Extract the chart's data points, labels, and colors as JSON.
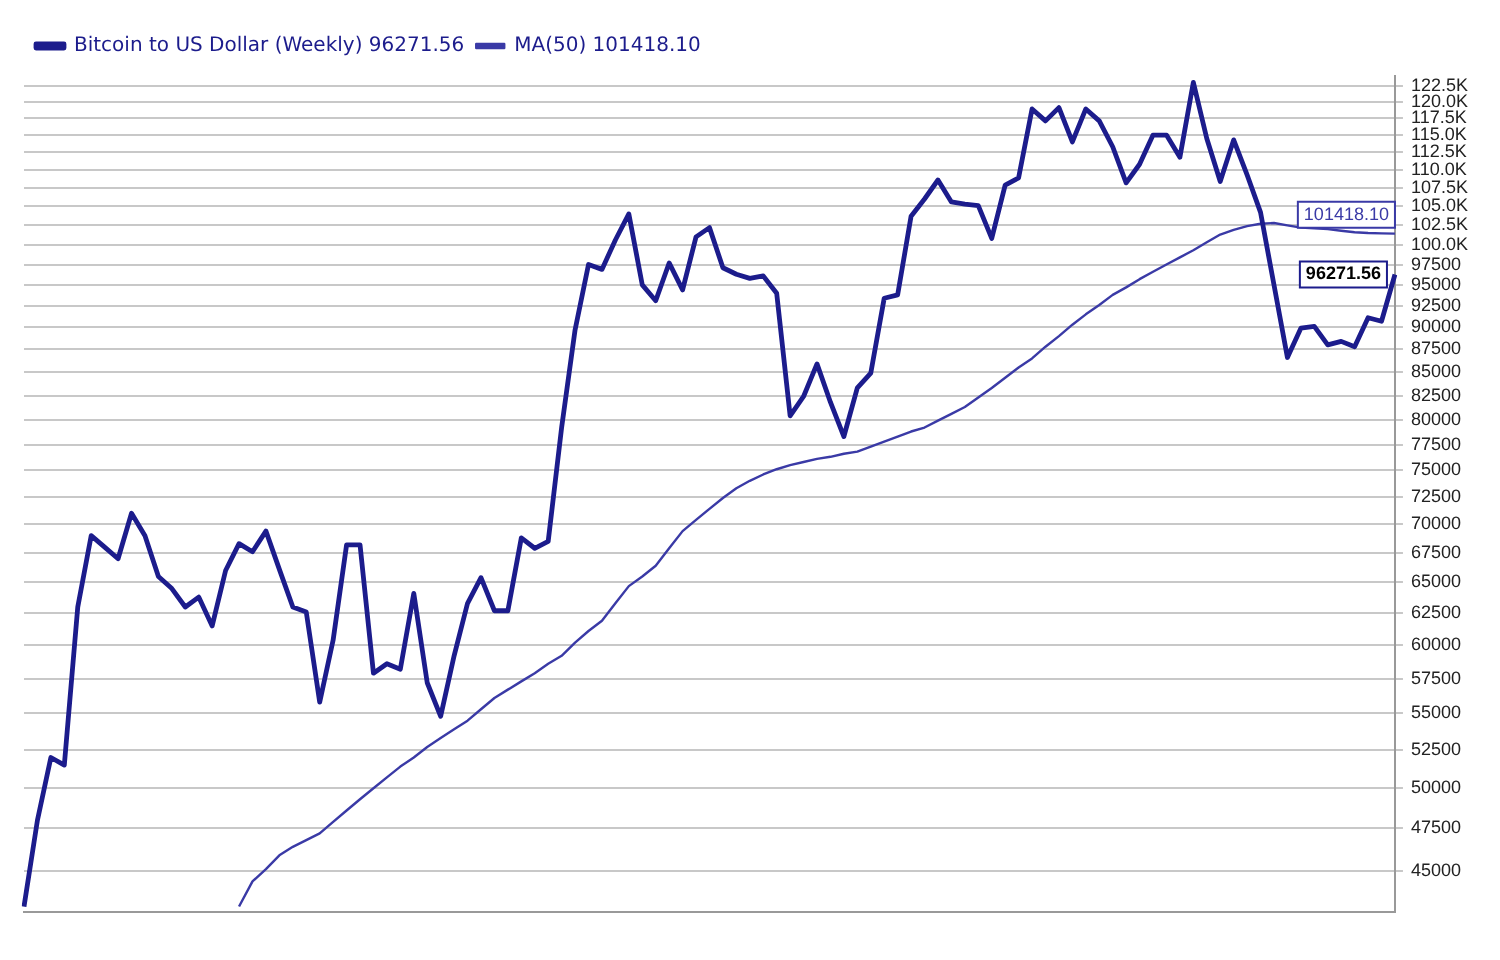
{
  "chart_data": {
    "type": "line",
    "legend": "top left",
    "grid": "y",
    "marker": "none",
    "line_style": "solid",
    "log": "y",
    "tick_labels": "y",
    "categories": [
      null,
      null,
      null,
      null,
      null,
      null,
      null,
      null,
      null,
      null,
      null,
      null,
      null,
      null,
      null,
      null,
      null,
      null,
      null,
      null,
      null,
      null,
      null,
      null,
      null,
      null,
      null,
      null,
      null,
      null,
      null,
      null,
      null,
      null,
      null,
      null,
      null,
      null,
      null,
      null,
      null,
      null,
      null,
      null,
      null,
      null,
      null,
      null,
      null,
      null,
      null,
      null,
      null,
      null,
      null,
      null,
      null,
      null,
      null,
      null,
      null,
      null,
      null,
      null,
      null,
      null,
      null,
      null,
      null,
      null,
      null,
      null,
      null,
      null,
      null,
      null,
      null,
      null,
      null,
      null,
      null,
      null,
      null,
      null,
      null,
      null,
      null,
      null,
      null,
      null,
      null,
      null,
      null,
      null,
      null,
      null,
      null,
      null,
      null,
      null,
      null,
      null,
      null
    ],
    "ylim": [
      42700,
      124000
    ],
    "yticks": [
      45000,
      47500,
      50000,
      52500,
      55000,
      57500,
      60000,
      62500,
      65000,
      67500,
      70000,
      72500,
      75000,
      77500,
      80000,
      82500,
      85000,
      87500,
      90000,
      92500,
      95000,
      97500,
      {
        "value": 100000,
        "label": "100.0K"
      },
      {
        "value": 102500,
        "label": "102.5K"
      },
      {
        "value": 105000,
        "label": "105.0K"
      },
      {
        "value": 107500,
        "label": "107.5K"
      },
      {
        "value": 110000,
        "label": "110.0K"
      },
      {
        "value": 112500,
        "label": "112.5K"
      },
      {
        "value": 115000,
        "label": "115.0K"
      },
      {
        "value": 117500,
        "label": "117.5K"
      },
      {
        "value": 120000,
        "label": "120.0K"
      },
      {
        "value": 122500,
        "label": "122.5K"
      }
    ],
    "series": [
      {
        "name": "Bitcoin to US Dollar (Weekly) 96271.56",
        "color": "#1c1c8c",
        "values": [
          43000,
          48000,
          52000,
          51500,
          63000,
          69000,
          68000,
          67000,
          71000,
          69000,
          65500,
          64500,
          63000,
          63800,
          61500,
          66000,
          68300,
          67600,
          69400,
          66100,
          63000,
          62600,
          55800,
          60400,
          68200,
          68200,
          57900,
          58600,
          58200,
          64100,
          57200,
          54800,
          59200,
          63300,
          65400,
          62700,
          62700,
          68800,
          67900,
          68500,
          79200,
          89700,
          97500,
          96900,
          100600,
          104000,
          95000,
          93100,
          97700,
          94400,
          101000,
          102200,
          97100,
          96300,
          95800,
          96100,
          94000,
          80400,
          82400,
          85900,
          81800,
          78300,
          83300,
          84900,
          93400,
          93800,
          103700,
          106000,
          108600,
          105600,
          105300,
          105100,
          100800,
          107900,
          108900,
          118900,
          117100,
          119100,
          114000,
          118900,
          117100,
          113300,
          108200,
          110800,
          115000,
          115000,
          111800,
          123000,
          114500,
          108400,
          114300,
          109300,
          104200,
          95000,
          86600,
          89900,
          90100,
          88000,
          88400,
          87800,
          91100,
          90700,
          96271.56
        ],
        "value_labels": [
          null,
          null,
          null,
          null,
          null,
          null,
          null,
          null,
          null,
          null,
          null,
          null,
          null,
          null,
          null,
          null,
          null,
          null,
          null,
          null,
          null,
          null,
          null,
          null,
          null,
          null,
          null,
          null,
          null,
          null,
          null,
          null,
          null,
          null,
          null,
          null,
          null,
          null,
          null,
          null,
          null,
          null,
          null,
          null,
          null,
          null,
          null,
          null,
          null,
          null,
          null,
          null,
          null,
          null,
          null,
          null,
          null,
          null,
          null,
          null,
          null,
          null,
          null,
          null,
          null,
          null,
          null,
          null,
          null,
          null,
          null,
          null,
          null,
          null,
          null,
          null,
          null,
          null,
          null,
          null,
          null,
          null,
          null,
          null,
          null,
          null,
          null,
          null,
          null,
          null,
          null,
          null,
          null,
          null,
          null,
          null,
          null,
          null,
          null,
          null,
          null,
          null,
          "96271.56"
        ]
      },
      {
        "name": "MA(50) 101418.10",
        "color": "#3a3aa6",
        "values": [
          null,
          null,
          null,
          null,
          null,
          null,
          null,
          null,
          null,
          null,
          null,
          null,
          null,
          null,
          null,
          null,
          43000,
          44400,
          45100,
          45900,
          46400,
          46800,
          47200,
          47900,
          48600,
          49300,
          50000,
          50700,
          51400,
          52000,
          52700,
          53300,
          53900,
          54500,
          55300,
          56100,
          56700,
          57300,
          57900,
          58600,
          59200,
          60200,
          61100,
          61900,
          63300,
          64700,
          65500,
          66400,
          67900,
          69400,
          70400,
          71400,
          72400,
          73300,
          74000,
          74600,
          75100,
          75500,
          75800,
          76100,
          76300,
          76600,
          76800,
          77300,
          77800,
          78300,
          78800,
          79200,
          79900,
          80600,
          81300,
          82300,
          83300,
          84400,
          85500,
          86500,
          87800,
          89000,
          90300,
          91500,
          92600,
          93800,
          94700,
          95700,
          96600,
          97500,
          98400,
          99300,
          100300,
          101300,
          101900,
          102400,
          102700,
          102800,
          102500,
          102200,
          102100,
          102000,
          101800,
          101600,
          101500,
          101450,
          101418.1
        ],
        "value_labels": [
          null,
          null,
          null,
          null,
          null,
          null,
          null,
          null,
          null,
          null,
          null,
          null,
          null,
          null,
          null,
          null,
          null,
          null,
          null,
          null,
          null,
          null,
          null,
          null,
          null,
          null,
          null,
          null,
          null,
          null,
          null,
          null,
          null,
          null,
          null,
          null,
          null,
          null,
          null,
          null,
          null,
          null,
          null,
          null,
          null,
          null,
          null,
          null,
          null,
          null,
          null,
          null,
          null,
          null,
          null,
          null,
          null,
          null,
          null,
          null,
          null,
          null,
          null,
          null,
          null,
          null,
          null,
          null,
          null,
          null,
          null,
          null,
          null,
          null,
          null,
          null,
          null,
          null,
          null,
          null,
          null,
          null,
          null,
          null,
          null,
          null,
          null,
          null,
          null,
          null,
          null,
          null,
          null,
          null,
          null,
          null,
          null,
          null,
          null,
          null,
          null,
          null,
          "101418.10"
        ]
      }
    ]
  }
}
